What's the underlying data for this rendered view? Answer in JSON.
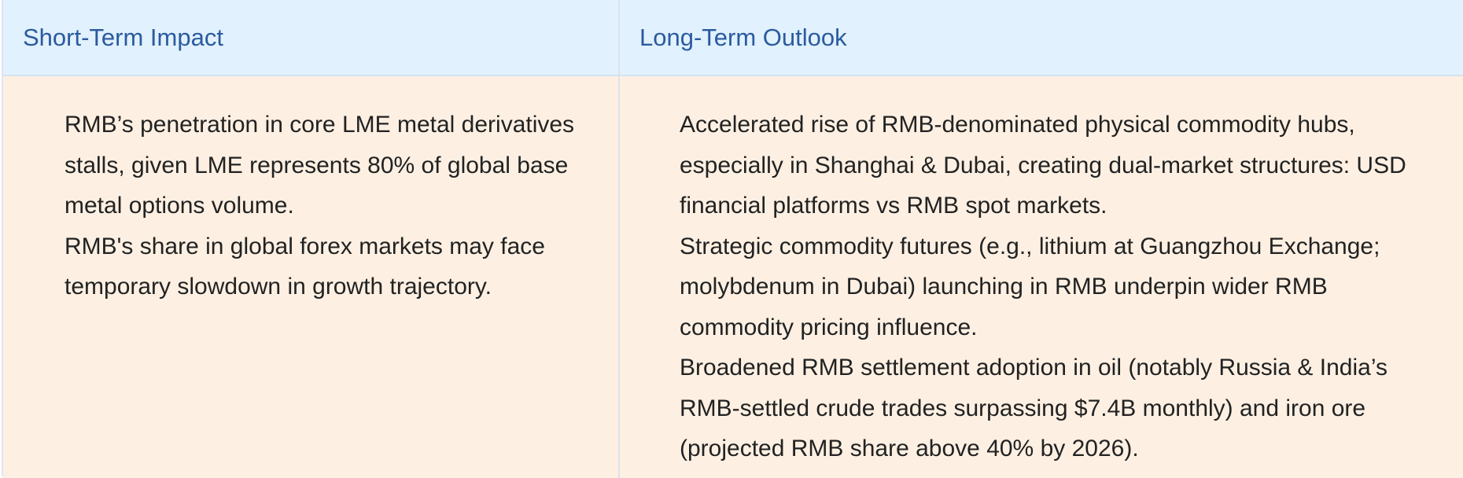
{
  "table": {
    "headers": [
      "Short-Term Impact",
      "Long-Term Outlook"
    ],
    "short_term": [
      "RMB’s penetration in core LME metal derivatives stalls, given LME represents 80% of global base metal options volume.",
      "RMB's share in global forex markets may face temporary slowdown in growth trajectory."
    ],
    "long_term": [
      "Accelerated rise of RMB-denominated physical commodity hubs, especially in Shanghai & Dubai, creating dual-market structures: USD financial platforms vs RMB spot markets.",
      "Strategic commodity futures (e.g., lithium at Guangzhou Exchange; molybdenum in Dubai) launching in RMB underpin wider RMB commodity pricing influence.",
      "Broadened RMB settlement adoption in oil (notably Russia & India’s RMB-settled crude trades surpassing $7.4B monthly) and iron ore (projected RMB share above 40% by 2026)."
    ]
  },
  "colors": {
    "header_bg": "#e1f1fd",
    "header_text": "#2b5aa0",
    "cell_bg": "#fdf0e3",
    "body_text": "#222222"
  }
}
